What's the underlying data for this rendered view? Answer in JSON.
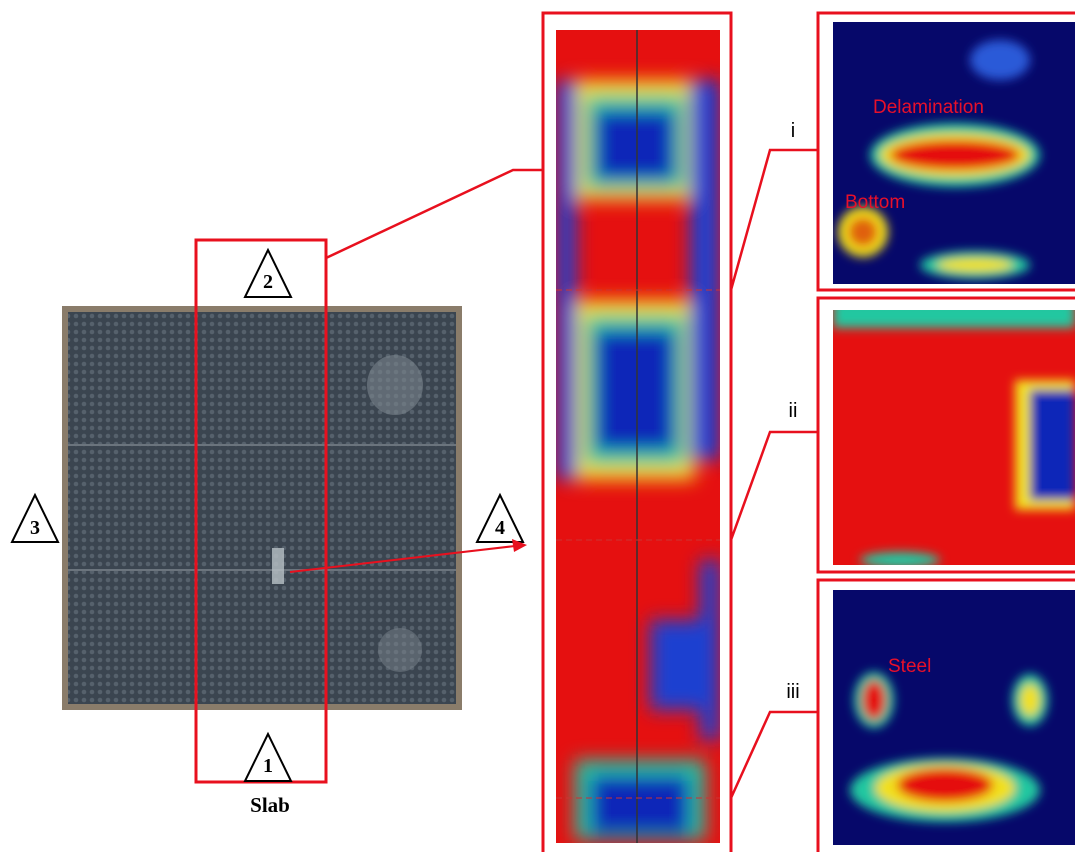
{
  "slab": {
    "label": "Slab",
    "markers": [
      "1",
      "2",
      "3",
      "4"
    ]
  },
  "panels": [
    {
      "label": "i",
      "annotations": [
        "Delamination",
        "Bottom"
      ]
    },
    {
      "label": "ii"
    },
    {
      "label": "iii",
      "annotations": [
        "Steel"
      ]
    }
  ]
}
